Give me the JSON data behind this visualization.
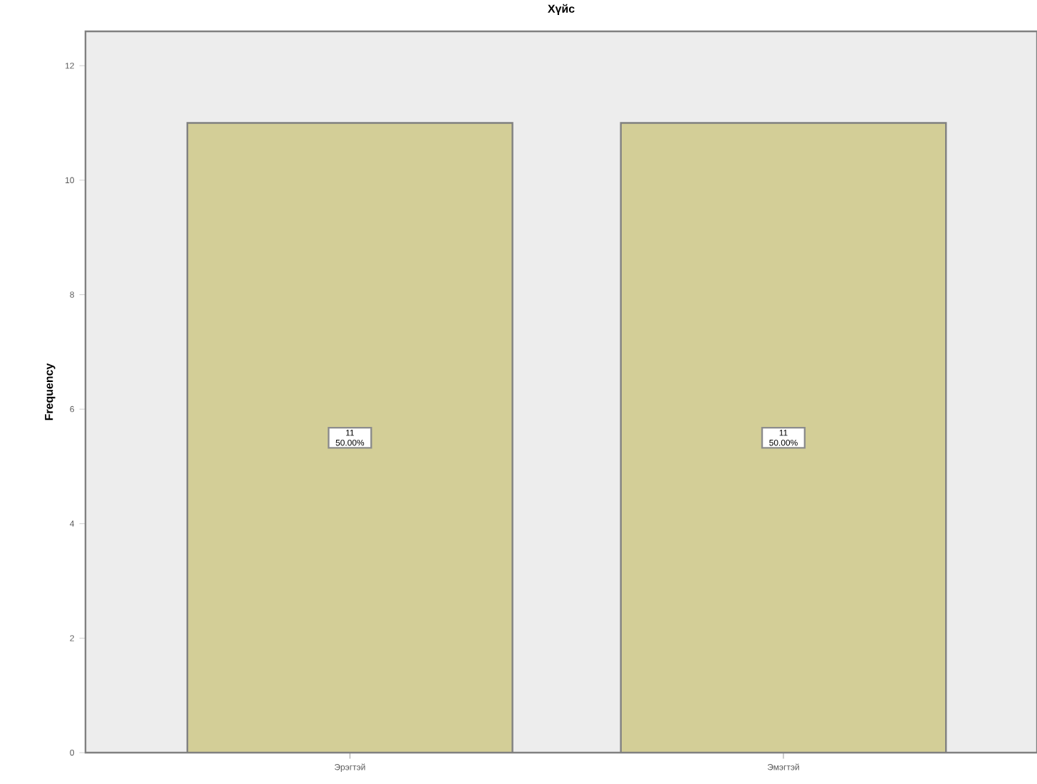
{
  "chart_data": {
    "type": "bar",
    "title": "Хүйс",
    "ylabel": "Frequency",
    "categories": [
      "Эрэгтэй",
      "Эмэгтэй"
    ],
    "values": [
      11,
      11
    ],
    "color": "#d3ce97",
    "value_labels": [
      "11 50.00%",
      "11 50.00%"
    ],
    "ylim": [
      0,
      12.6
    ],
    "yticks": [
      0,
      2,
      4,
      6,
      8,
      10,
      12
    ]
  }
}
